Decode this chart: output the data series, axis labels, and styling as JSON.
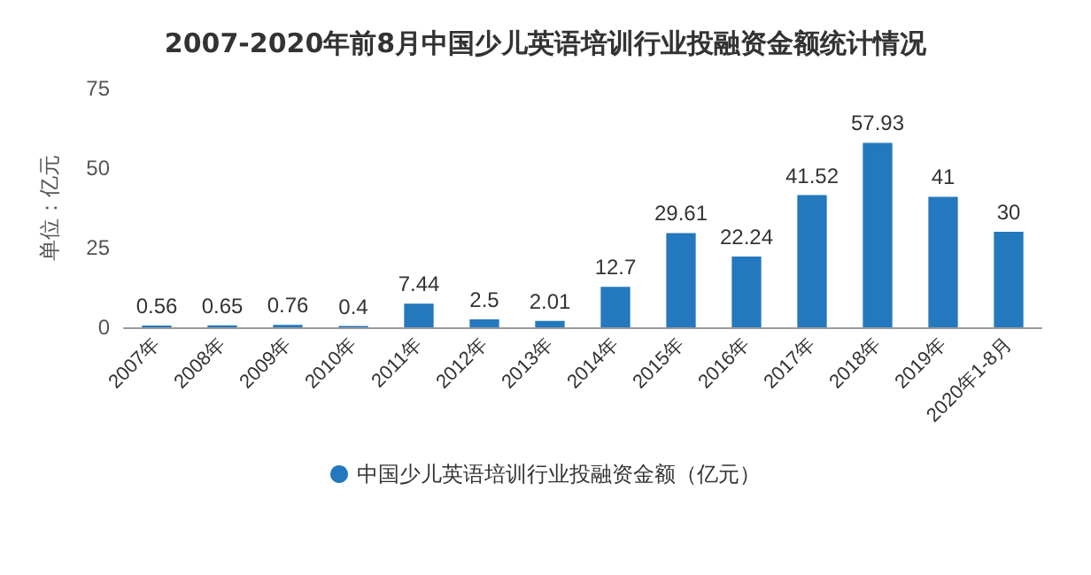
{
  "chart_data": {
    "type": "bar",
    "title": "2007-2020年前8月中国少儿英语培训行业投融资金额统计情况",
    "ylabel": "单位：亿元",
    "categories": [
      "2007年",
      "2008年",
      "2009年",
      "2010年",
      "2011年",
      "2012年",
      "2013年",
      "2014年",
      "2015年",
      "2016年",
      "2017年",
      "2018年",
      "2019年",
      "2020年1-8月"
    ],
    "series": [
      {
        "name": "中国少儿英语培训行业投融资金额（亿元）",
        "color": "#2478bd",
        "values": [
          0.56,
          0.65,
          0.76,
          0.4,
          7.44,
          2.5,
          2.01,
          12.7,
          29.61,
          22.24,
          41.52,
          57.93,
          41,
          30
        ]
      }
    ],
    "ylim": [
      0,
      75
    ],
    "yticks": [
      0,
      25,
      50,
      75
    ],
    "grid": false,
    "legend": "bottom",
    "data_labels": true
  }
}
